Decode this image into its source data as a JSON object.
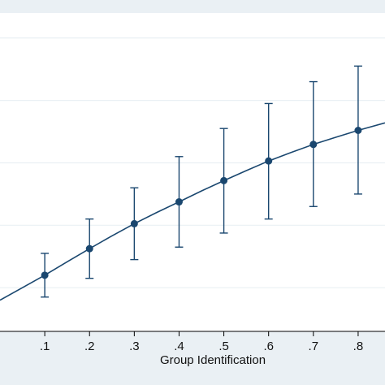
{
  "chart_data": {
    "type": "line",
    "xlabel": "Group Identification",
    "ylabel": "",
    "xlim": [
      0,
      0.86
    ],
    "ylim": [
      0.06,
      1.08
    ],
    "x": [
      0.1,
      0.2,
      0.3,
      0.4,
      0.5,
      0.6,
      0.7,
      0.8
    ],
    "x_tick_labels": [
      ".1",
      ".2",
      ".3",
      ".4",
      ".5",
      ".6",
      ".7",
      ".8"
    ],
    "y_gridlines": [
      0.2,
      0.4,
      0.6,
      0.8,
      1.0
    ],
    "series": [
      {
        "values": [
          0.24,
          0.325,
          0.405,
          0.475,
          0.543,
          0.606,
          0.659,
          0.704
        ],
        "lower": [
          0.17,
          0.23,
          0.29,
          0.33,
          0.375,
          0.42,
          0.46,
          0.5
        ],
        "upper": [
          0.31,
          0.42,
          0.52,
          0.62,
          0.71,
          0.79,
          0.86,
          0.91
        ]
      }
    ],
    "curve": {
      "x": [
        0,
        0.05,
        0.1,
        0.15,
        0.2,
        0.25,
        0.3,
        0.35,
        0.4,
        0.45,
        0.5,
        0.55,
        0.6,
        0.65,
        0.7,
        0.75,
        0.8,
        0.86
      ],
      "y": [
        0.16,
        0.2,
        0.24,
        0.283,
        0.325,
        0.366,
        0.405,
        0.441,
        0.475,
        0.51,
        0.543,
        0.575,
        0.606,
        0.633,
        0.659,
        0.682,
        0.704,
        0.728
      ]
    },
    "grid": true,
    "colors": {
      "line": "#1a476f",
      "marker": "#1a476f",
      "background": "#eaf0f4",
      "plot_area": "#ffffff",
      "gridline": "#eaf0f4"
    }
  }
}
